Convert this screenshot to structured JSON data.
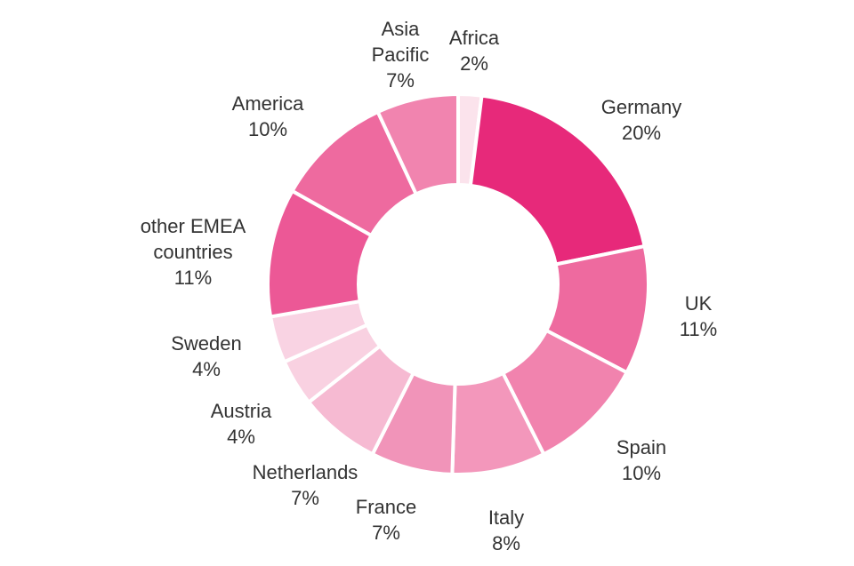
{
  "chart_data": {
    "type": "pie",
    "variant": "donut",
    "start": "top",
    "direction": "clockwise",
    "slices": [
      {
        "label_lines": [
          "Africa"
        ],
        "pct_label": "2%",
        "value": 2,
        "color": "#fbe3ec"
      },
      {
        "label_lines": [
          "Germany"
        ],
        "pct_label": "20%",
        "value": 20,
        "color": "#e7297a"
      },
      {
        "label_lines": [
          "UK"
        ],
        "pct_label": "11%",
        "value": 11,
        "color": "#ee6a9f"
      },
      {
        "label_lines": [
          "Spain"
        ],
        "pct_label": "10%",
        "value": 10,
        "color": "#f183ae"
      },
      {
        "label_lines": [
          "Italy"
        ],
        "pct_label": "8%",
        "value": 8,
        "color": "#f397bb"
      },
      {
        "label_lines": [
          "France"
        ],
        "pct_label": "7%",
        "value": 7,
        "color": "#f194b9"
      },
      {
        "label_lines": [
          "Netherlands"
        ],
        "pct_label": "7%",
        "value": 7,
        "color": "#f6bad2"
      },
      {
        "label_lines": [
          "Austria"
        ],
        "pct_label": "4%",
        "value": 4,
        "color": "#f9d1e1"
      },
      {
        "label_lines": [
          "Sweden"
        ],
        "pct_label": "4%",
        "value": 4,
        "color": "#f9d3e3"
      },
      {
        "label_lines": [
          "other EMEA",
          "countries"
        ],
        "pct_label": "11%",
        "value": 11,
        "color": "#ec5896"
      },
      {
        "label_lines": [
          "America"
        ],
        "pct_label": "10%",
        "value": 10,
        "color": "#ee6a9f"
      },
      {
        "label_lines": [
          "Asia",
          "Pacific"
        ],
        "pct_label": "7%",
        "value": 7,
        "color": "#f184af"
      }
    ]
  }
}
